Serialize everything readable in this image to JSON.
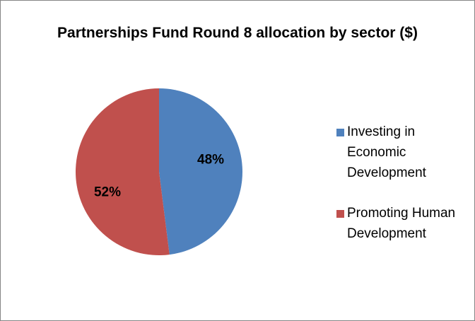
{
  "chart_data": {
    "type": "pie",
    "title": "Partnerships Fund Round 8 allocation by sector ($)",
    "categories": [
      "Investing in Economic Development",
      "Promoting Human Development"
    ],
    "values": [
      48,
      52
    ],
    "value_labels": [
      "48%",
      "52%"
    ],
    "colors": [
      "#4f81bd",
      "#c0504d"
    ],
    "legend": "right"
  }
}
